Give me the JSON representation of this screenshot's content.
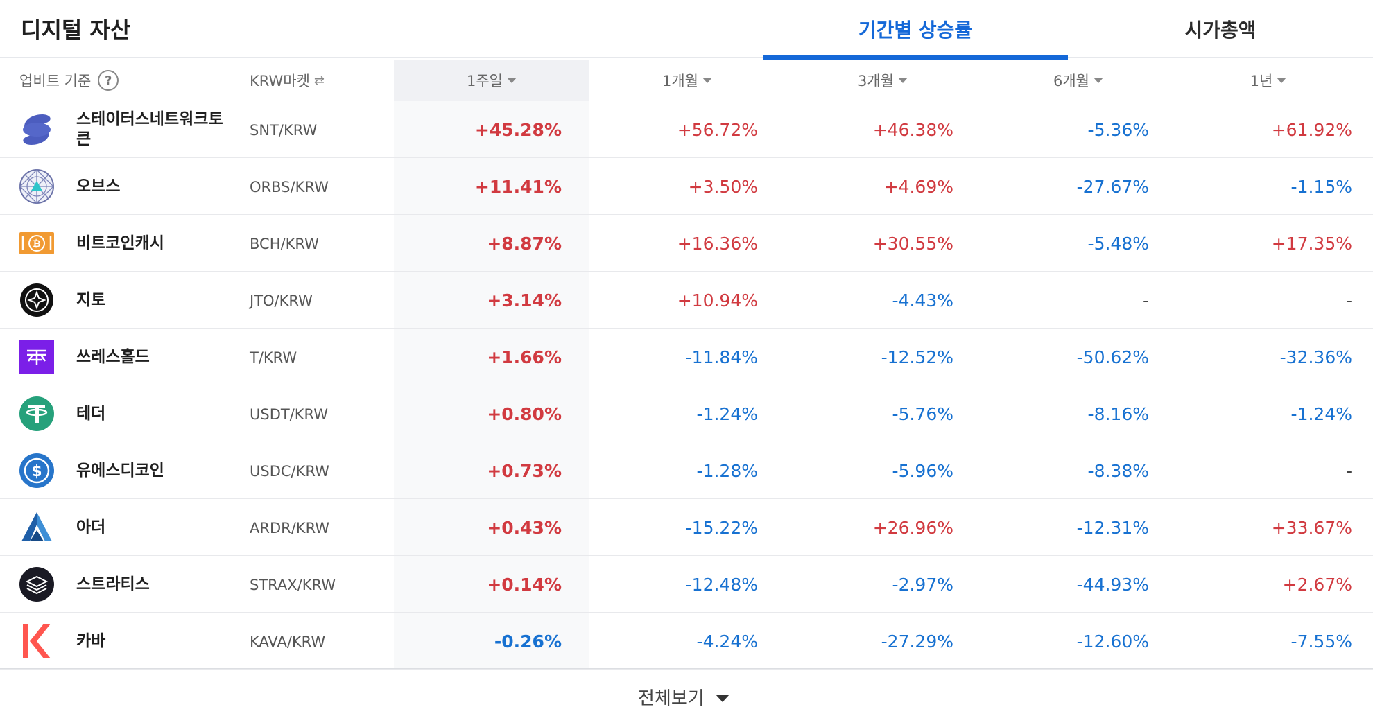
{
  "header": {
    "title": "디지털 자산",
    "tabs": [
      {
        "label": "기간별 상승률",
        "active": true
      },
      {
        "label": "시가총액",
        "active": false
      }
    ]
  },
  "columns": {
    "basis_label": "업비트 기준",
    "help_icon": "?",
    "market_label": "KRW마켓",
    "periods": [
      "1주일",
      "1개월",
      "3개월",
      "6개월",
      "1년"
    ],
    "selected_period": "1주일"
  },
  "colors": {
    "up": "#d13a40",
    "down": "#1771d1",
    "accent": "#1468d8"
  },
  "rows": [
    {
      "name": "스테이터스네트워크토큰",
      "pair": "SNT/KRW",
      "icon": "snt-icon",
      "w1": "+45.28%",
      "m1": "+56.72%",
      "m3": "+46.38%",
      "m6": "-5.36%",
      "y1": "+61.92%"
    },
    {
      "name": "오브스",
      "pair": "ORBS/KRW",
      "icon": "orbs-icon",
      "w1": "+11.41%",
      "m1": "+3.50%",
      "m3": "+4.69%",
      "m6": "-27.67%",
      "y1": "-1.15%"
    },
    {
      "name": "비트코인캐시",
      "pair": "BCH/KRW",
      "icon": "bch-icon",
      "w1": "+8.87%",
      "m1": "+16.36%",
      "m3": "+30.55%",
      "m6": "-5.48%",
      "y1": "+17.35%"
    },
    {
      "name": "지토",
      "pair": "JTO/KRW",
      "icon": "jto-icon",
      "w1": "+3.14%",
      "m1": "+10.94%",
      "m3": "-4.43%",
      "m6": "-",
      "y1": "-"
    },
    {
      "name": "쓰레스홀드",
      "pair": "T/KRW",
      "icon": "threshold-icon",
      "w1": "+1.66%",
      "m1": "-11.84%",
      "m3": "-12.52%",
      "m6": "-50.62%",
      "y1": "-32.36%"
    },
    {
      "name": "테더",
      "pair": "USDT/KRW",
      "icon": "usdt-icon",
      "w1": "+0.80%",
      "m1": "-1.24%",
      "m3": "-5.76%",
      "m6": "-8.16%",
      "y1": "-1.24%"
    },
    {
      "name": "유에스디코인",
      "pair": "USDC/KRW",
      "icon": "usdc-icon",
      "w1": "+0.73%",
      "m1": "-1.28%",
      "m3": "-5.96%",
      "m6": "-8.38%",
      "y1": "-"
    },
    {
      "name": "아더",
      "pair": "ARDR/KRW",
      "icon": "ardr-icon",
      "w1": "+0.43%",
      "m1": "-15.22%",
      "m3": "+26.96%",
      "m6": "-12.31%",
      "y1": "+33.67%"
    },
    {
      "name": "스트라티스",
      "pair": "STRAX/KRW",
      "icon": "strax-icon",
      "w1": "+0.14%",
      "m1": "-12.48%",
      "m3": "-2.97%",
      "m6": "-44.93%",
      "y1": "+2.67%"
    },
    {
      "name": "카바",
      "pair": "KAVA/KRW",
      "icon": "kava-icon",
      "w1": "-0.26%",
      "m1": "-4.24%",
      "m3": "-27.29%",
      "m6": "-12.60%",
      "y1": "-7.55%"
    }
  ],
  "footer": {
    "view_all_label": "전체보기"
  }
}
